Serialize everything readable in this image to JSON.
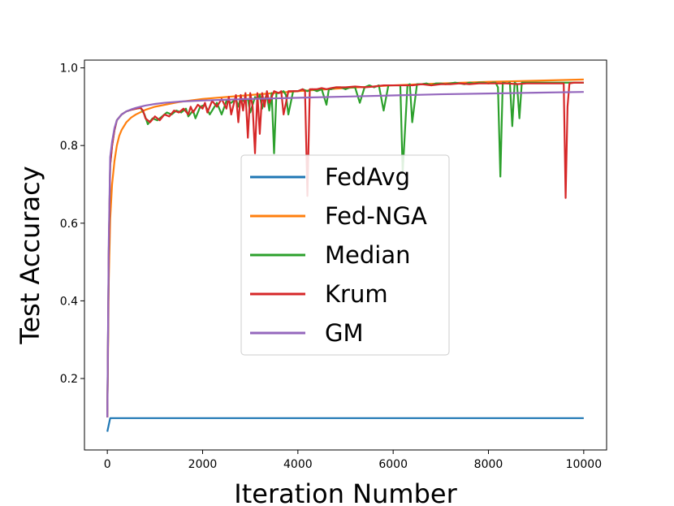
{
  "chart_data": {
    "type": "line",
    "title": "",
    "xlabel": "Iteration Number",
    "ylabel": "Test Accuracy",
    "xlim": [
      -480,
      10480
    ],
    "ylim": [
      0.016,
      1.02
    ],
    "xticks": [
      0,
      2000,
      4000,
      6000,
      8000,
      10000
    ],
    "xtick_labels": [
      "0",
      "2000",
      "4000",
      "6000",
      "8000",
      "10000"
    ],
    "yticks": [
      0.2,
      0.4,
      0.6,
      0.8,
      1.0
    ],
    "ytick_labels": [
      "0.2",
      "0.4",
      "0.6",
      "0.8",
      "1.0"
    ],
    "grid": false,
    "legend_position": "center",
    "colors": {
      "FedAvg": "#1f77b4",
      "Fed-NGA": "#ff7f0e",
      "Median": "#2ca02c",
      "Krum": "#d62728",
      "GM": "#9467bd"
    },
    "series": [
      {
        "name": "FedAvg",
        "x": [
          0,
          60,
          500,
          1000,
          2000,
          4000,
          6000,
          8000,
          10000
        ],
        "y": [
          0.063,
          0.098,
          0.098,
          0.098,
          0.098,
          0.098,
          0.098,
          0.098,
          0.098
        ]
      },
      {
        "name": "Fed-NGA",
        "x": [
          0,
          30,
          60,
          100,
          150,
          200,
          250,
          300,
          400,
          500,
          600,
          800,
          1000,
          1500,
          2000,
          3000,
          4000,
          5000,
          6000,
          7000,
          8000,
          9000,
          10000
        ],
        "y": [
          0.1,
          0.45,
          0.61,
          0.7,
          0.76,
          0.8,
          0.825,
          0.84,
          0.86,
          0.872,
          0.88,
          0.892,
          0.9,
          0.912,
          0.92,
          0.93,
          0.94,
          0.948,
          0.955,
          0.96,
          0.964,
          0.967,
          0.97
        ]
      },
      {
        "name": "Median",
        "x": [
          0,
          30,
          60,
          100,
          150,
          200,
          300,
          400,
          500,
          600,
          700,
          780,
          850,
          950,
          1050,
          1150,
          1250,
          1350,
          1450,
          1550,
          1650,
          1700,
          1800,
          1850,
          1950,
          2050,
          2150,
          2250,
          2300,
          2400,
          2500,
          2600,
          2700,
          2750,
          2800,
          2850,
          2950,
          3000,
          3100,
          3150,
          3200,
          3250,
          3300,
          3350,
          3400,
          3450,
          3500,
          3550,
          3600,
          3700,
          3750,
          3800,
          3900,
          4000,
          4100,
          4200,
          4300,
          4400,
          4500,
          4600,
          4650,
          4700,
          4800,
          4900,
          5000,
          5100,
          5200,
          5300,
          5400,
          5500,
          5600,
          5700,
          5800,
          5900,
          6000,
          6100,
          6150,
          6200,
          6300,
          6350,
          6400,
          6500,
          6600,
          6700,
          6800,
          6900,
          7000,
          7100,
          7200,
          7300,
          7400,
          7500,
          7600,
          7700,
          7800,
          7900,
          8000,
          8100,
          8150,
          8200,
          8250,
          8300,
          8400,
          8450,
          8500,
          8550,
          8600,
          8650,
          8700,
          8800,
          8900,
          9000,
          9100,
          9200,
          9300,
          9400,
          9500,
          9600,
          9700,
          9800,
          9900,
          10000
        ],
        "y": [
          0.1,
          0.52,
          0.75,
          0.8,
          0.84,
          0.865,
          0.88,
          0.888,
          0.892,
          0.895,
          0.897,
          0.88,
          0.855,
          0.87,
          0.865,
          0.875,
          0.885,
          0.88,
          0.89,
          0.885,
          0.895,
          0.875,
          0.89,
          0.87,
          0.9,
          0.905,
          0.88,
          0.9,
          0.91,
          0.88,
          0.915,
          0.91,
          0.92,
          0.9,
          0.925,
          0.915,
          0.92,
          0.885,
          0.925,
          0.92,
          0.93,
          0.895,
          0.92,
          0.93,
          0.89,
          0.935,
          0.78,
          0.935,
          0.935,
          0.94,
          0.93,
          0.88,
          0.94,
          0.94,
          0.945,
          0.94,
          0.945,
          0.94,
          0.945,
          0.905,
          0.945,
          0.945,
          0.95,
          0.95,
          0.945,
          0.95,
          0.95,
          0.91,
          0.95,
          0.955,
          0.95,
          0.955,
          0.89,
          0.955,
          0.955,
          0.955,
          0.955,
          0.73,
          0.955,
          0.958,
          0.86,
          0.958,
          0.958,
          0.96,
          0.955,
          0.96,
          0.96,
          0.958,
          0.96,
          0.962,
          0.96,
          0.958,
          0.962,
          0.96,
          0.962,
          0.962,
          0.96,
          0.962,
          0.962,
          0.95,
          0.72,
          0.962,
          0.96,
          0.962,
          0.85,
          0.962,
          0.958,
          0.87,
          0.962,
          0.962,
          0.962,
          0.962,
          0.962,
          0.962,
          0.962,
          0.962,
          0.962,
          0.962,
          0.962,
          0.962,
          0.962,
          0.962
        ]
      },
      {
        "name": "Krum",
        "x": [
          0,
          30,
          60,
          100,
          150,
          200,
          300,
          400,
          500,
          600,
          700,
          750,
          800,
          900,
          1000,
          1100,
          1200,
          1300,
          1400,
          1500,
          1600,
          1700,
          1750,
          1800,
          1900,
          2000,
          2050,
          2100,
          2200,
          2300,
          2400,
          2500,
          2550,
          2600,
          2700,
          2750,
          2800,
          2850,
          2900,
          2950,
          3000,
          3050,
          3100,
          3150,
          3200,
          3250,
          3300,
          3350,
          3400,
          3500,
          3600,
          3650,
          3700,
          3800,
          3900,
          4000,
          4100,
          4150,
          4200,
          4250,
          4300,
          4400,
          4500,
          4600,
          4700,
          4800,
          4900,
          5000,
          5200,
          5400,
          5600,
          5800,
          6000,
          6200,
          6400,
          6600,
          6800,
          7000,
          7200,
          7400,
          7600,
          7800,
          8000,
          8200,
          8400,
          8600,
          8800,
          9000,
          9200,
          9400,
          9500,
          9580,
          9620,
          9660,
          9700,
          9800,
          9900,
          10000
        ],
        "y": [
          0.1,
          0.52,
          0.75,
          0.8,
          0.84,
          0.865,
          0.88,
          0.888,
          0.892,
          0.895,
          0.897,
          0.89,
          0.87,
          0.86,
          0.875,
          0.865,
          0.88,
          0.875,
          0.89,
          0.885,
          0.895,
          0.88,
          0.9,
          0.885,
          0.905,
          0.895,
          0.91,
          0.885,
          0.915,
          0.9,
          0.92,
          0.895,
          0.925,
          0.88,
          0.93,
          0.86,
          0.93,
          0.89,
          0.935,
          0.82,
          0.935,
          0.9,
          0.78,
          0.935,
          0.83,
          0.935,
          0.9,
          0.94,
          0.91,
          0.94,
          0.935,
          0.94,
          0.88,
          0.94,
          0.94,
          0.94,
          0.945,
          0.94,
          0.67,
          0.945,
          0.945,
          0.945,
          0.948,
          0.945,
          0.948,
          0.95,
          0.95,
          0.95,
          0.952,
          0.95,
          0.952,
          0.955,
          0.955,
          0.955,
          0.955,
          0.958,
          0.955,
          0.958,
          0.958,
          0.96,
          0.958,
          0.96,
          0.96,
          0.96,
          0.96,
          0.958,
          0.96,
          0.96,
          0.96,
          0.96,
          0.96,
          0.96,
          0.665,
          0.9,
          0.96,
          0.962,
          0.962,
          0.962
        ]
      },
      {
        "name": "GM",
        "x": [
          0,
          30,
          60,
          100,
          150,
          200,
          300,
          400,
          500,
          600,
          700,
          800,
          1000,
          1200,
          1500,
          2000,
          2500,
          3000,
          4000,
          5000,
          6000,
          7000,
          8000,
          9000,
          10000
        ],
        "y": [
          0.1,
          0.55,
          0.77,
          0.81,
          0.845,
          0.865,
          0.88,
          0.888,
          0.893,
          0.897,
          0.9,
          0.903,
          0.907,
          0.91,
          0.913,
          0.916,
          0.918,
          0.92,
          0.923,
          0.926,
          0.929,
          0.932,
          0.934,
          0.936,
          0.938
        ]
      }
    ]
  }
}
